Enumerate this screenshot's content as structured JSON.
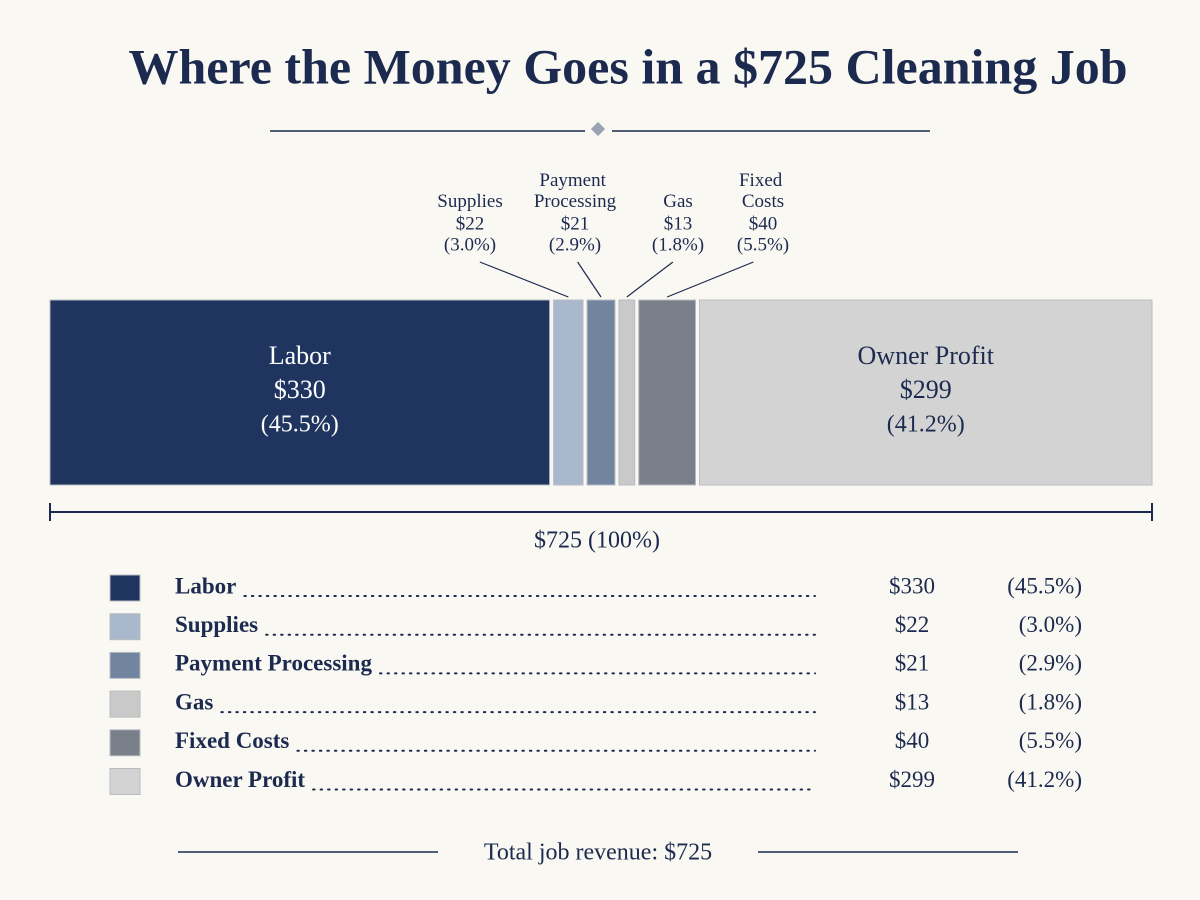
{
  "chart_data": {
    "type": "stacked-bar",
    "title": "Where the Money Goes in a $725 Cleaning Job",
    "categories": [
      "Labor",
      "Supplies",
      "Payment Processing",
      "Gas",
      "Fixed Costs",
      "Owner Profit"
    ],
    "values": [
      330,
      22,
      21,
      13,
      40,
      299
    ],
    "value_labels": [
      "$330",
      "$22",
      "$21",
      "$13",
      "$40",
      "$299"
    ],
    "percent_labels": [
      "(45.5%)",
      "(3.0%)",
      "(2.9%)",
      "(1.8%)",
      "(5.5%)",
      "(41.2%)"
    ],
    "colors": [
      "#1f3560",
      "#a9b8cc",
      "#7184a0",
      "#c9c9c9",
      "#7a8089",
      "#d3d3d3"
    ],
    "xlim": [
      0,
      725
    ],
    "total": 725,
    "total_label": "$725 (100%)",
    "footer": "Total job revenue: $725"
  }
}
